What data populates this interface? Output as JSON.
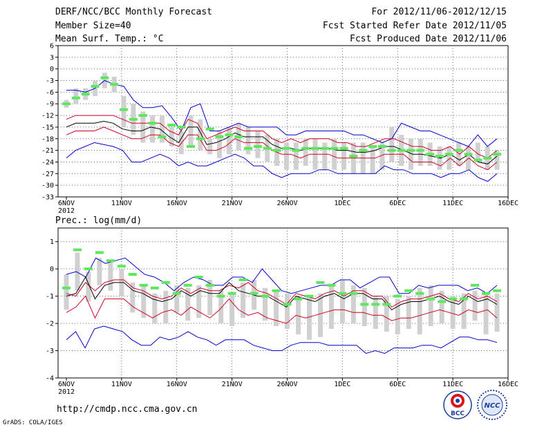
{
  "header": {
    "title": "DERF/NCC/BCC Monthly Forecast",
    "member_size": "Member Size=40",
    "variable": "Mean Surf. Temp.: °C",
    "period": "For 2012/11/06-2012/12/15",
    "started": "Fcst Started Refer Date 2012/11/05",
    "produced": "Fcst Produced Date 2012/11/06"
  },
  "footer": {
    "url": "http://cmdp.ncc.cma.gov.cn",
    "credit": "GrADS: COLA/IGES",
    "logo_bcc": "BCC",
    "logo_ncc": "NCC"
  },
  "colors": {
    "envelope": "#0000cc",
    "spread": "#cc0022",
    "ensemble_mean": "#000000",
    "box": "#d0d0d0",
    "observed": "#5ee65e"
  },
  "chart_data": [
    {
      "type": "line",
      "title": "Mean Surf. Temp.: °C",
      "ylim": [
        -33,
        6
      ],
      "yticks": [
        6,
        3,
        0,
        -3,
        -6,
        -9,
        -12,
        -15,
        -18,
        -21,
        -24,
        -27,
        -30,
        -33
      ],
      "xlim": [
        0,
        39
      ],
      "xticks": [
        {
          "day": 0,
          "label": "6NOV"
        },
        {
          "day": 5,
          "label": "11NOV"
        },
        {
          "day": 10,
          "label": "16NOV"
        },
        {
          "day": 15,
          "label": "21NOV"
        },
        {
          "day": 20,
          "label": "26NOV"
        },
        {
          "day": 25,
          "label": "1DEC"
        },
        {
          "day": 30,
          "label": "6DEC"
        },
        {
          "day": 35,
          "label": "11DEC"
        },
        {
          "day": 40,
          "label": "16DEC"
        }
      ],
      "year_label": "2012",
      "series": [
        {
          "name": "max",
          "values": [
            -5.5,
            -5.5,
            -6,
            -5,
            -3,
            -4,
            -4.5,
            -8,
            -10,
            -10,
            -9.5,
            -12.5,
            -16,
            -10,
            -9,
            -16,
            -16,
            -15,
            -14,
            -15,
            -15,
            -15,
            -15,
            -17,
            -17,
            -16,
            -16,
            -16,
            -16,
            -16,
            -17,
            -17,
            -18,
            -19,
            -18,
            -14,
            -15,
            -16,
            -16,
            -17,
            -18,
            -19,
            -20,
            -17,
            -20,
            -18
          ]
        },
        {
          "name": "upper",
          "values": [
            -13,
            -12,
            -12,
            -12,
            -12,
            -12,
            -13,
            -14,
            -14,
            -14,
            -14,
            -16,
            -17,
            -13,
            -14,
            -18,
            -17,
            -16,
            -15,
            -16,
            -16,
            -16,
            -18,
            -19,
            -18,
            -19,
            -18,
            -18,
            -18,
            -19,
            -19,
            -20,
            -20,
            -19,
            -18,
            -18,
            -19,
            -20,
            -20,
            -21,
            -21,
            -20,
            -22,
            -20,
            -22,
            -23,
            -21
          ]
        },
        {
          "name": "mean",
          "values": [
            -15,
            -14,
            -14,
            -14,
            -13.5,
            -14,
            -15.5,
            -16,
            -16,
            -15,
            -15.5,
            -17.5,
            -19,
            -15,
            -15,
            -19.5,
            -19,
            -18,
            -16.5,
            -17.5,
            -17.5,
            -17.5,
            -19.5,
            -20.5,
            -20.5,
            -21,
            -20.5,
            -20.5,
            -20.5,
            -21,
            -21,
            -21.5,
            -21.5,
            -21,
            -20,
            -20,
            -21,
            -22,
            -22,
            -22.5,
            -23,
            -22,
            -23.5,
            -22,
            -24,
            -24.5,
            -22.5
          ]
        },
        {
          "name": "lower",
          "values": [
            -17,
            -16,
            -16,
            -16,
            -15,
            -16,
            -17,
            -18,
            -18,
            -17,
            -17,
            -19,
            -20,
            -17,
            -17,
            -21,
            -21,
            -20,
            -18,
            -19,
            -19,
            -19,
            -21,
            -22,
            -22,
            -23,
            -22,
            -22,
            -22,
            -23,
            -23,
            -23,
            -23,
            -23,
            -22,
            -22,
            -22,
            -24,
            -24,
            -24,
            -25,
            -23,
            -25,
            -23,
            -25,
            -26,
            -24
          ]
        },
        {
          "name": "min",
          "values": [
            -23,
            -21,
            -20,
            -19,
            -19.5,
            -20,
            -21,
            -24,
            -24,
            -23,
            -22,
            -23,
            -25,
            -24,
            -25,
            -25,
            -24,
            -23,
            -22,
            -23,
            -25,
            -25,
            -27,
            -28,
            -27,
            -27,
            -27,
            -26,
            -26,
            -27,
            -27,
            -27,
            -27,
            -27,
            -25,
            -26,
            -26,
            -27,
            -27,
            -27,
            -28,
            -27,
            -27,
            -26,
            -28,
            -29,
            -27
          ]
        },
        {
          "name": "observed",
          "values": [
            -9,
            -7.5,
            -6.5,
            -4.5,
            -2.3,
            -4,
            -10.5,
            -13,
            -12,
            -14,
            -17.5,
            -14.5,
            -15,
            -20,
            -18,
            -15.5,
            -17.5,
            -17,
            -17.5,
            -20.5,
            -20,
            -20.5,
            -21,
            -20.5,
            -21,
            -20.5,
            -20.5,
            -20.5,
            -20.5,
            -20.5,
            -22.5,
            -21,
            -20,
            -20,
            -21,
            -21,
            -21,
            -21,
            -22,
            -22.5,
            -22,
            -21,
            -22,
            -23.5,
            -23,
            -22
          ]
        }
      ],
      "boxes": [
        [
          -10,
          -8
        ],
        [
          -9,
          -5
        ],
        [
          -8,
          -5
        ],
        [
          -7,
          -3
        ],
        [
          -5,
          -1
        ],
        [
          -6,
          -2
        ],
        [
          -15,
          -7
        ],
        [
          -17,
          -9
        ],
        [
          -19,
          -11
        ],
        [
          -19,
          -12
        ],
        [
          -19,
          -12
        ],
        [
          -20,
          -15
        ],
        [
          -22,
          -16
        ],
        [
          -20,
          -12
        ],
        [
          -21,
          -13
        ],
        [
          -22,
          -18
        ],
        [
          -23,
          -16
        ],
        [
          -22,
          -15
        ],
        [
          -21,
          -14
        ],
        [
          -22,
          -15
        ],
        [
          -23,
          -16
        ],
        [
          -24,
          -17
        ],
        [
          -25,
          -18
        ],
        [
          -26,
          -19
        ],
        [
          -26,
          -19
        ],
        [
          -25,
          -18
        ],
        [
          -26,
          -18
        ],
        [
          -26,
          -19
        ],
        [
          -26,
          -18
        ],
        [
          -26,
          -19
        ],
        [
          -27,
          -19
        ],
        [
          -27,
          -19
        ],
        [
          -27,
          -20
        ],
        [
          -26,
          -19
        ],
        [
          -24,
          -15
        ],
        [
          -25,
          -17
        ],
        [
          -26,
          -18
        ],
        [
          -25,
          -18
        ],
        [
          -25,
          -19
        ],
        [
          -26,
          -20
        ],
        [
          -26,
          -20
        ],
        [
          -25,
          -19
        ],
        [
          -26,
          -20
        ],
        [
          -24,
          -19
        ],
        [
          -26,
          -20
        ],
        [
          -26,
          -21
        ]
      ]
    },
    {
      "type": "line",
      "title": "Prec.: log(mm/d)",
      "ylim": [
        -4,
        1.5
      ],
      "yticks": [
        1,
        0,
        -1,
        -2,
        -3,
        -4
      ],
      "xlim": [
        0,
        39
      ],
      "xticks": [
        {
          "day": 0,
          "label": "6NOV"
        },
        {
          "day": 5,
          "label": "11NOV"
        },
        {
          "day": 10,
          "label": "16NOV"
        },
        {
          "day": 15,
          "label": "21NOV"
        },
        {
          "day": 20,
          "label": "26NOV"
        },
        {
          "day": 25,
          "label": "1DEC"
        },
        {
          "day": 30,
          "label": "6DEC"
        },
        {
          "day": 35,
          "label": "11DEC"
        },
        {
          "day": 40,
          "label": "16DEC"
        }
      ],
      "year_label": "2012",
      "series": [
        {
          "name": "max",
          "values": [
            -0.2,
            -0.1,
            -0.3,
            0.4,
            0.2,
            0.3,
            0.4,
            0.1,
            -0.2,
            -0.3,
            -0.5,
            -0.8,
            -0.5,
            -0.3,
            -0.4,
            -0.6,
            -0.6,
            -0.3,
            -0.3,
            -0.5,
            0.0,
            -0.4,
            -0.8,
            -0.9,
            -0.8,
            -0.7,
            -0.6,
            -0.6,
            -0.4,
            -0.4,
            -0.7,
            -0.5,
            -0.3,
            -0.3,
            -0.9,
            -0.9,
            -0.6,
            -0.7,
            -0.6,
            -0.6,
            -0.6,
            -0.8,
            -0.7,
            -0.9,
            -0.6
          ]
        },
        {
          "name": "upper",
          "values": [
            -0.9,
            -1.0,
            -0.5,
            -0.8,
            -0.5,
            -0.4,
            -0.4,
            -0.7,
            -0.8,
            -1.0,
            -1.1,
            -1.0,
            -0.7,
            -0.9,
            -0.7,
            -0.8,
            -0.8,
            -0.6,
            -0.7,
            -0.5,
            -0.8,
            -0.9,
            -1.1,
            -1.3,
            -0.9,
            -1.0,
            -1.1,
            -0.9,
            -0.8,
            -1.0,
            -0.8,
            -0.8,
            -1.0,
            -1.0,
            -1.4,
            -1.2,
            -1.1,
            -1.1,
            -1.0,
            -0.9,
            -1.1,
            -1.2,
            -0.9,
            -1.1,
            -1.0,
            -1.2
          ]
        },
        {
          "name": "mean",
          "values": [
            -1.0,
            -0.9,
            -0.3,
            -1.1,
            -0.6,
            -0.5,
            -0.5,
            -0.8,
            -0.9,
            -1.1,
            -1.2,
            -1.1,
            -0.8,
            -1.0,
            -0.8,
            -0.9,
            -0.9,
            -0.5,
            -0.8,
            -0.9,
            -1.0,
            -1.0,
            -1.2,
            -1.4,
            -1.0,
            -1.1,
            -1.2,
            -1.0,
            -0.9,
            -1.1,
            -0.9,
            -0.9,
            -1.1,
            -1.1,
            -1.5,
            -1.3,
            -1.2,
            -1.2,
            -1.1,
            -1.0,
            -1.2,
            -1.3,
            -1.0,
            -1.2,
            -1.1,
            -1.3
          ]
        },
        {
          "name": "lower",
          "values": [
            -1.6,
            -1.4,
            -1.0,
            -1.8,
            -1.1,
            -1.1,
            -1.1,
            -1.4,
            -1.6,
            -1.8,
            -1.6,
            -1.5,
            -1.7,
            -1.4,
            -1.6,
            -1.8,
            -1.5,
            -1.1,
            -1.5,
            -1.7,
            -1.6,
            -1.8,
            -1.9,
            -2.0,
            -1.7,
            -1.8,
            -1.7,
            -1.6,
            -1.5,
            -1.5,
            -1.6,
            -1.6,
            -1.7,
            -1.7,
            -1.9,
            -1.8,
            -1.8,
            -1.7,
            -1.6,
            -1.5,
            -1.6,
            -1.7,
            -1.5,
            -1.6,
            -1.5,
            -1.8
          ]
        },
        {
          "name": "min",
          "values": [
            -2.6,
            -2.3,
            -2.9,
            -2.2,
            -2.1,
            -2.2,
            -2.3,
            -2.6,
            -2.8,
            -2.8,
            -2.5,
            -2.6,
            -2.5,
            -2.3,
            -2.5,
            -2.6,
            -2.8,
            -2.6,
            -2.6,
            -2.6,
            -2.8,
            -2.9,
            -3.0,
            -3.0,
            -2.8,
            -2.7,
            -2.7,
            -2.7,
            -2.8,
            -2.8,
            -2.8,
            -2.8,
            -3.1,
            -3.0,
            -3.1,
            -2.9,
            -2.9,
            -2.9,
            -2.8,
            -2.8,
            -2.9,
            -2.7,
            -2.5,
            -2.5,
            -2.6,
            -2.6,
            -2.7
          ]
        },
        {
          "name": "observed",
          "values": [
            -0.7,
            0.7,
            0.0,
            0.6,
            0.3,
            0.1,
            -0.2,
            -0.6,
            -0.7,
            -0.5,
            -0.9,
            -0.6,
            -0.3,
            -0.6,
            -1.0,
            -0.9,
            -0.4,
            -0.9,
            -1.0,
            -0.8,
            -1.3,
            -1.1,
            -1.0,
            -0.5,
            -0.6,
            -0.9,
            -0.9,
            -1.3,
            -1.3,
            -1.3,
            -1.0,
            -0.8,
            -0.9,
            -1.1,
            -1.2,
            -1.1,
            -1.1,
            -0.6,
            -0.9,
            -0.8
          ]
        }
      ],
      "boxes": [
        [
          -1.5,
          -0.2
        ],
        [
          -0.8,
          0.6
        ],
        [
          -1.2,
          -0.1
        ],
        [
          -0.6,
          0.4
        ],
        [
          -0.8,
          0.3
        ],
        [
          -1.0,
          0.0
        ],
        [
          -1.6,
          -0.5
        ],
        [
          -1.8,
          -0.6
        ],
        [
          -2.0,
          -0.9
        ],
        [
          -2.0,
          -0.8
        ],
        [
          -1.6,
          -0.6
        ],
        [
          -1.9,
          -0.7
        ],
        [
          -1.8,
          -0.6
        ],
        [
          -1.7,
          -0.4
        ],
        [
          -2.0,
          -0.8
        ],
        [
          -2.1,
          -0.9
        ],
        [
          -1.8,
          -0.5
        ],
        [
          -1.5,
          -0.4
        ],
        [
          -1.9,
          -0.7
        ],
        [
          -2.1,
          -0.8
        ],
        [
          -2.2,
          -0.9
        ],
        [
          -2.4,
          -1.0
        ],
        [
          -2.6,
          -1.0
        ],
        [
          -2.5,
          -0.9
        ],
        [
          -2.2,
          -0.6
        ],
        [
          -2.0,
          -0.4
        ],
        [
          -2.0,
          -0.6
        ],
        [
          -2.1,
          -0.7
        ],
        [
          -2.2,
          -1.0
        ],
        [
          -2.3,
          -1.0
        ],
        [
          -2.4,
          -1.1
        ],
        [
          -2.2,
          -1.0
        ],
        [
          -2.4,
          -0.7
        ],
        [
          -2.1,
          -0.6
        ],
        [
          -2.0,
          -0.8
        ],
        [
          -2.2,
          -1.0
        ],
        [
          -2.2,
          -0.9
        ],
        [
          -1.9,
          -0.8
        ],
        [
          -2.4,
          -0.9
        ],
        [
          -2.3,
          -0.9
        ]
      ]
    }
  ]
}
